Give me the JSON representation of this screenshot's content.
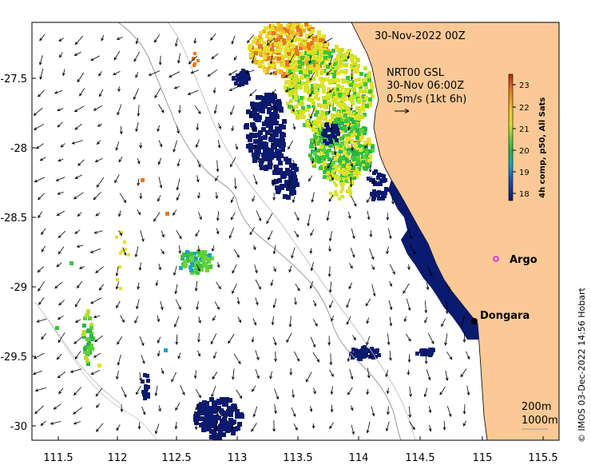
{
  "map": {
    "timestamp": "30-Nov-2022 00Z",
    "current_source": "NRT00 GSL",
    "current_time": "30-Nov 06:00Z",
    "vector_scale": "0.5m/s (1kt 6h)",
    "credit": "© IMOS 03-Dec-2022 14:56 Hobart",
    "contours": [
      "200m",
      "1000m"
    ],
    "x_ticks": [
      "111.5",
      "112",
      "112.5",
      "113",
      "113.5",
      "114",
      "114.5",
      "115",
      "115.5"
    ],
    "y_ticks": [
      "-27.5",
      "-28",
      "-28.5",
      "-29",
      "-29.5",
      "-30"
    ],
    "places": [
      {
        "label": "Argo",
        "marker": "magenta-circle-icon"
      },
      {
        "label": "Dongara",
        "marker": "black-dot-icon"
      }
    ],
    "colorbar": {
      "label": "4h comp, p50, All Sats",
      "ticks": [
        "23",
        "22",
        "21",
        "20",
        "19",
        "18"
      ]
    },
    "colors": {
      "land": "#fbc996",
      "sst_cold": "#0a1a6e",
      "sst_mid": "#3cc43a",
      "sst_warm": "#e6e02a",
      "sst_hot": "#e27a1a",
      "argo": "#e21ed8"
    }
  }
}
